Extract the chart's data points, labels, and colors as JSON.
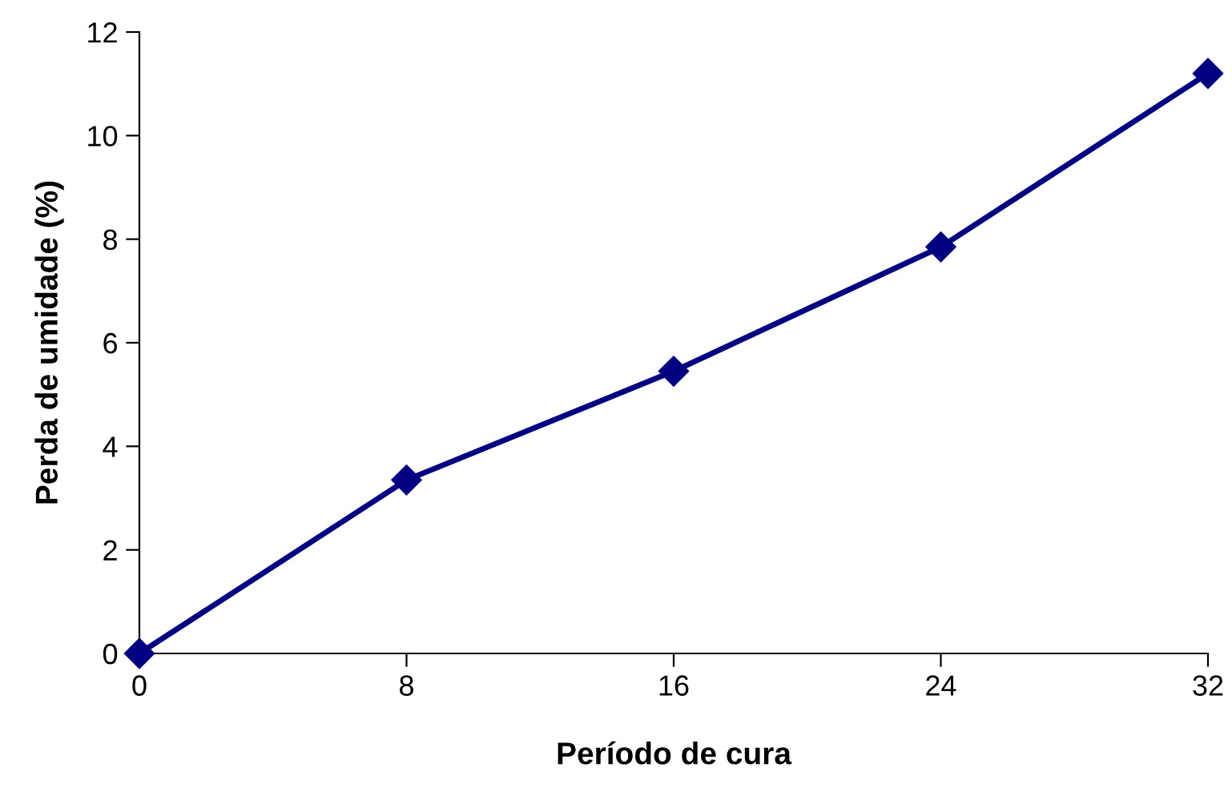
{
  "chart_data": {
    "type": "line",
    "xlabel": "Período de cura",
    "ylabel": "Perda de umidade (%)",
    "x": [
      0,
      8,
      16,
      24,
      32
    ],
    "series": [
      {
        "color": "#000080",
        "values": [
          0,
          3.35,
          5.45,
          7.85,
          11.2
        ]
      }
    ],
    "xlim": [
      0,
      32
    ],
    "xticks": [
      0,
      8,
      16,
      24,
      32
    ],
    "ylim": [
      0,
      12
    ],
    "yticks": [
      0,
      2,
      4,
      6,
      8,
      10,
      12
    ],
    "grid": false,
    "legend": false,
    "marker": "diamond",
    "line_style": "solid"
  }
}
